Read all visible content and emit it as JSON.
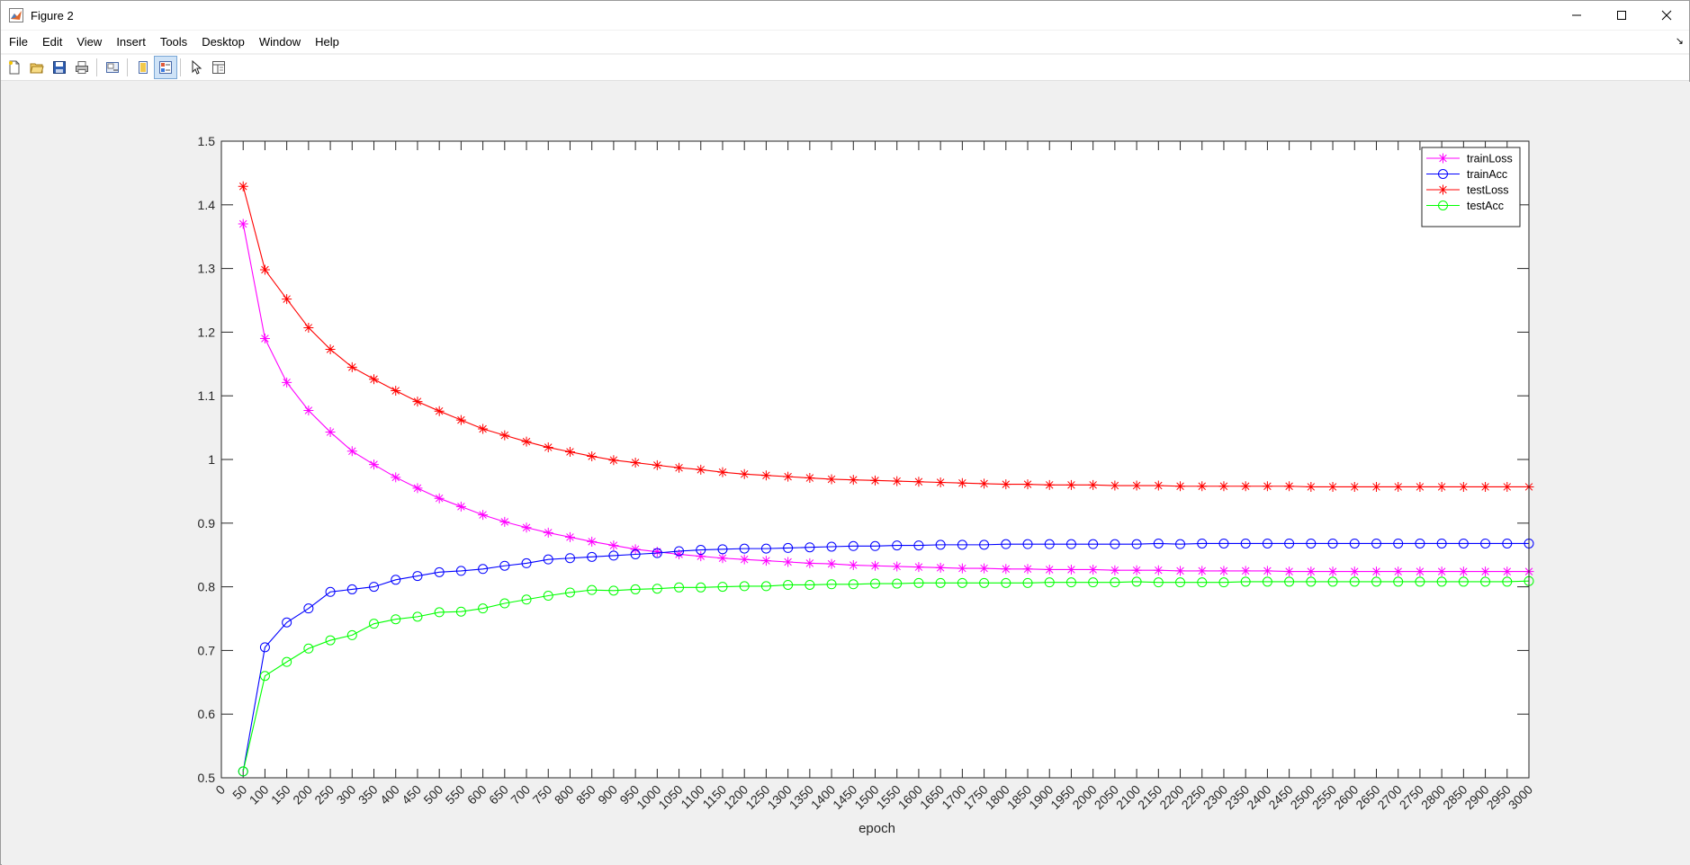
{
  "window": {
    "title": "Figure 2",
    "controls": [
      "minimize-icon",
      "maximize-icon",
      "close-icon"
    ]
  },
  "menu": {
    "items": [
      "File",
      "Edit",
      "View",
      "Insert",
      "Tools",
      "Desktop",
      "Window",
      "Help"
    ]
  },
  "toolbar": {
    "buttons": [
      {
        "name": "new-figure-icon"
      },
      {
        "name": "open-file-icon"
      },
      {
        "name": "save-icon"
      },
      {
        "name": "print-icon"
      },
      {
        "name": "link-axes-icon"
      },
      {
        "name": "hide-plot-tools-icon"
      },
      {
        "name": "show-plot-tools-icon"
      },
      {
        "name": "edit-plot-pointer-icon"
      },
      {
        "name": "open-property-inspector-icon"
      }
    ]
  },
  "chart_data": {
    "type": "line",
    "title": "",
    "xlabel": "epoch",
    "ylabel": "",
    "xlim": [
      0,
      3000
    ],
    "ylim": [
      0.5,
      1.5
    ],
    "xticks": [
      0,
      50,
      100,
      150,
      200,
      250,
      300,
      350,
      400,
      450,
      500,
      550,
      600,
      650,
      700,
      750,
      800,
      850,
      900,
      950,
      1000,
      1050,
      1100,
      1150,
      1200,
      1250,
      1300,
      1350,
      1400,
      1450,
      1500,
      1550,
      1600,
      1650,
      1700,
      1750,
      1800,
      1850,
      1900,
      1950,
      2000,
      2050,
      2100,
      2150,
      2200,
      2250,
      2300,
      2350,
      2400,
      2450,
      2500,
      2550,
      2600,
      2650,
      2700,
      2750,
      2800,
      2850,
      2900,
      2950,
      3000
    ],
    "yticks": [
      0.5,
      0.6,
      0.7,
      0.8,
      0.9,
      1,
      1.1,
      1.2,
      1.3,
      1.4,
      1.5
    ],
    "ytick_labels": [
      "0.5",
      "0.6",
      "0.7",
      "0.8",
      "0.9",
      "1",
      "1.1",
      "1.2",
      "1.3",
      "1.4",
      "1.5"
    ],
    "grid": false,
    "legend_position": "top-right",
    "x": [
      50,
      100,
      150,
      200,
      250,
      300,
      350,
      400,
      450,
      500,
      550,
      600,
      650,
      700,
      750,
      800,
      850,
      900,
      950,
      1000,
      1050,
      1100,
      1150,
      1200,
      1250,
      1300,
      1350,
      1400,
      1450,
      1500,
      1550,
      1600,
      1650,
      1700,
      1750,
      1800,
      1850,
      1900,
      1950,
      2000,
      2050,
      2100,
      2150,
      2200,
      2250,
      2300,
      2350,
      2400,
      2450,
      2500,
      2550,
      2600,
      2650,
      2700,
      2750,
      2800,
      2850,
      2900,
      2950,
      3000
    ],
    "series": [
      {
        "name": "trainLoss",
        "color": "#ff00ff",
        "marker": "asterisk",
        "values": [
          1.37,
          1.19,
          1.121,
          1.077,
          1.043,
          1.013,
          0.992,
          0.972,
          0.955,
          0.939,
          0.926,
          0.913,
          0.902,
          0.893,
          0.885,
          0.878,
          0.871,
          0.865,
          0.859,
          0.855,
          0.851,
          0.848,
          0.845,
          0.843,
          0.841,
          0.839,
          0.837,
          0.836,
          0.834,
          0.833,
          0.832,
          0.831,
          0.83,
          0.829,
          0.829,
          0.828,
          0.828,
          0.827,
          0.827,
          0.827,
          0.826,
          0.826,
          0.826,
          0.825,
          0.825,
          0.825,
          0.825,
          0.825,
          0.824,
          0.824,
          0.824,
          0.824,
          0.824,
          0.824,
          0.824,
          0.824,
          0.824,
          0.824,
          0.824,
          0.824
        ]
      },
      {
        "name": "trainAcc",
        "color": "#0000ff",
        "marker": "circle",
        "values": [
          0.51,
          0.705,
          0.744,
          0.766,
          0.792,
          0.796,
          0.8,
          0.811,
          0.817,
          0.823,
          0.825,
          0.828,
          0.833,
          0.837,
          0.843,
          0.845,
          0.847,
          0.849,
          0.851,
          0.853,
          0.856,
          0.858,
          0.859,
          0.86,
          0.86,
          0.861,
          0.862,
          0.863,
          0.864,
          0.864,
          0.865,
          0.865,
          0.866,
          0.866,
          0.866,
          0.867,
          0.867,
          0.867,
          0.867,
          0.867,
          0.867,
          0.867,
          0.868,
          0.867,
          0.868,
          0.868,
          0.868,
          0.868,
          0.868,
          0.868,
          0.868,
          0.868,
          0.868,
          0.868,
          0.868,
          0.868,
          0.868,
          0.868,
          0.868,
          0.868
        ]
      },
      {
        "name": "testLoss",
        "color": "#ff0000",
        "marker": "asterisk",
        "values": [
          1.429,
          1.298,
          1.252,
          1.207,
          1.173,
          1.145,
          1.126,
          1.108,
          1.091,
          1.076,
          1.062,
          1.048,
          1.038,
          1.028,
          1.019,
          1.012,
          1.005,
          0.999,
          0.995,
          0.991,
          0.987,
          0.984,
          0.98,
          0.977,
          0.975,
          0.973,
          0.971,
          0.969,
          0.968,
          0.967,
          0.966,
          0.965,
          0.964,
          0.963,
          0.962,
          0.961,
          0.961,
          0.96,
          0.96,
          0.96,
          0.959,
          0.959,
          0.959,
          0.958,
          0.958,
          0.958,
          0.958,
          0.958,
          0.958,
          0.957,
          0.957,
          0.957,
          0.957,
          0.957,
          0.957,
          0.957,
          0.957,
          0.957,
          0.957,
          0.957
        ]
      },
      {
        "name": "testAcc",
        "color": "#00ff00",
        "marker": "circle",
        "values": [
          0.51,
          0.66,
          0.682,
          0.703,
          0.716,
          0.724,
          0.742,
          0.749,
          0.753,
          0.76,
          0.761,
          0.766,
          0.774,
          0.78,
          0.786,
          0.791,
          0.795,
          0.794,
          0.796,
          0.797,
          0.799,
          0.799,
          0.8,
          0.801,
          0.801,
          0.803,
          0.803,
          0.804,
          0.804,
          0.805,
          0.805,
          0.806,
          0.806,
          0.806,
          0.806,
          0.806,
          0.806,
          0.807,
          0.807,
          0.807,
          0.807,
          0.808,
          0.807,
          0.807,
          0.807,
          0.807,
          0.808,
          0.808,
          0.808,
          0.808,
          0.808,
          0.808,
          0.808,
          0.808,
          0.808,
          0.808,
          0.808,
          0.808,
          0.808,
          0.809
        ]
      }
    ]
  }
}
